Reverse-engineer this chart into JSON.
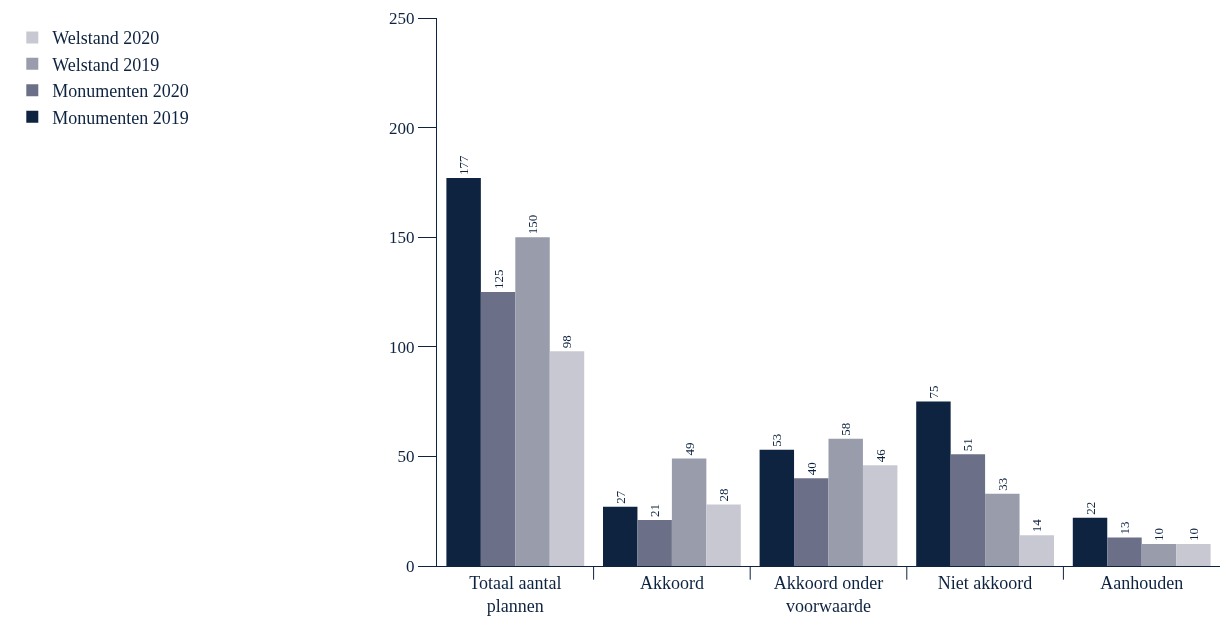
{
  "chart_data": {
    "type": "bar",
    "categories": [
      "Totaal aantal plannen",
      "Akkoord",
      "Akkoord onder voorwaarde",
      "Niet akkoord",
      "Aanhouden"
    ],
    "series": [
      {
        "name": "Monumenten 2019",
        "color": "#0d2340",
        "values": [
          177,
          27,
          53,
          75,
          22
        ]
      },
      {
        "name": "Monumenten 2020",
        "color": "#6b7088",
        "values": [
          125,
          21,
          40,
          51,
          13
        ]
      },
      {
        "name": "Welstand 2019",
        "color": "#999cab",
        "values": [
          150,
          49,
          58,
          33,
          10
        ]
      },
      {
        "name": "Welstand 2020",
        "color": "#c8c8d2",
        "values": [
          98,
          28,
          46,
          14,
          10
        ]
      }
    ],
    "ylim": [
      0,
      250
    ],
    "yticks": [
      0,
      50,
      100,
      150,
      200,
      250
    ],
    "grid": false,
    "legend": "top left",
    "data_labels": true
  }
}
